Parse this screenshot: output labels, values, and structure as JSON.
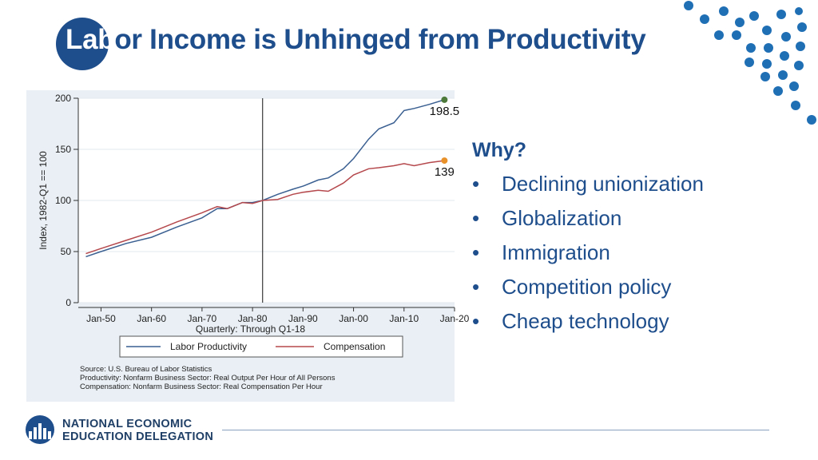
{
  "slide": {
    "title_part1": "Lab",
    "title_part2": "or Income is Unhinged from Productivity",
    "why_heading": "Why?",
    "bullet_char": "•",
    "bullets": [
      "Declining unionization",
      "Globalization",
      "Immigration",
      "Competition policy",
      "Cheap technology"
    ],
    "footer": {
      "org_line1": "NATIONAL ECONOMIC",
      "org_line2": "EDUCATION DELEGATION"
    },
    "colors": {
      "brand": "#1f4e8c",
      "dots": "#1f6fb5",
      "chart_bg": "#e9eff4"
    }
  },
  "chart_data": {
    "type": "line",
    "ylabel": "Index, 1982-Q1 == 100",
    "xlabel": "Quarterly: Through Q1-18",
    "ylim": [
      0,
      200
    ],
    "yticks": [
      0,
      50,
      100,
      150,
      200
    ],
    "xlim": [
      1945.5,
      2020
    ],
    "xticks": [
      1950,
      1960,
      1970,
      1980,
      1990,
      2000,
      2010,
      2020
    ],
    "xtick_labels": [
      "Jan-50",
      "Jan-60",
      "Jan-70",
      "Jan-80",
      "Jan-90",
      "Jan-00",
      "Jan-10",
      "Jan-20"
    ],
    "reference_line_x": 1982,
    "grid": true,
    "legend_position": "bottom",
    "series": [
      {
        "name": "Labor Productivity",
        "color": "#3a5f91",
        "x": [
          1947,
          1950,
          1955,
          1960,
          1965,
          1970,
          1973,
          1975,
          1978,
          1980,
          1982,
          1985,
          1988,
          1990,
          1993,
          1995,
          1998,
          2000,
          2003,
          2005,
          2008,
          2010,
          2012,
          2015,
          2018
        ],
        "y": [
          45,
          50,
          58,
          64,
          74,
          83,
          92,
          92,
          98,
          98,
          100,
          106,
          111,
          114,
          120,
          122,
          131,
          141,
          160,
          170,
          176,
          188,
          190,
          194,
          198.5
        ],
        "end_label": "198.5",
        "end_marker_color": "#4d7a3a"
      },
      {
        "name": "Compensation",
        "color": "#b5484c",
        "x": [
          1947,
          1950,
          1955,
          1960,
          1965,
          1970,
          1973,
          1975,
          1978,
          1980,
          1982,
          1985,
          1988,
          1990,
          1993,
          1995,
          1998,
          2000,
          2003,
          2005,
          2008,
          2010,
          2012,
          2015,
          2018
        ],
        "y": [
          48,
          53,
          61,
          69,
          79,
          88,
          94,
          92,
          98,
          97,
          100,
          101,
          106,
          108,
          110,
          109,
          117,
          125,
          131,
          132,
          134,
          136,
          134,
          137,
          139
        ],
        "end_label": "139",
        "end_marker_color": "#e8902a"
      }
    ],
    "source_notes": [
      "Source: U.S. Bureau of Labor Statistics",
      "Productivity: Nonfarm Business Sector: Real Output Per Hour of All Persons",
      "Compensation: Nonfarm Business Sector: Real Compensation Per Hour"
    ]
  }
}
